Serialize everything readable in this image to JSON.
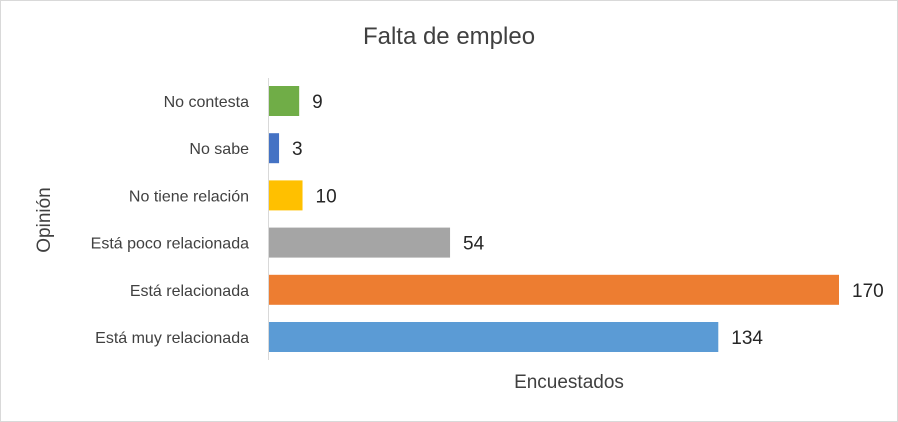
{
  "chart_data": {
    "type": "bar",
    "orientation": "horizontal",
    "title": "Falta de empleo",
    "xlabel": "Encuestados",
    "ylabel": "Opinión",
    "xlim": [
      0,
      170
    ],
    "grid": false,
    "legend": "none",
    "categories": [
      "No contesta",
      "No sabe",
      "No tiene relación",
      "Está poco relacionada",
      "Está relacionada",
      "Está muy relacionada"
    ],
    "values": [
      9,
      3,
      10,
      54,
      170,
      134
    ],
    "colors": [
      "#70ad47",
      "#4472c4",
      "#ffc000",
      "#a5a5a5",
      "#ed7d31",
      "#5b9bd5"
    ],
    "data_labels": [
      "9",
      "3",
      "10",
      "54",
      "170",
      "134"
    ]
  }
}
